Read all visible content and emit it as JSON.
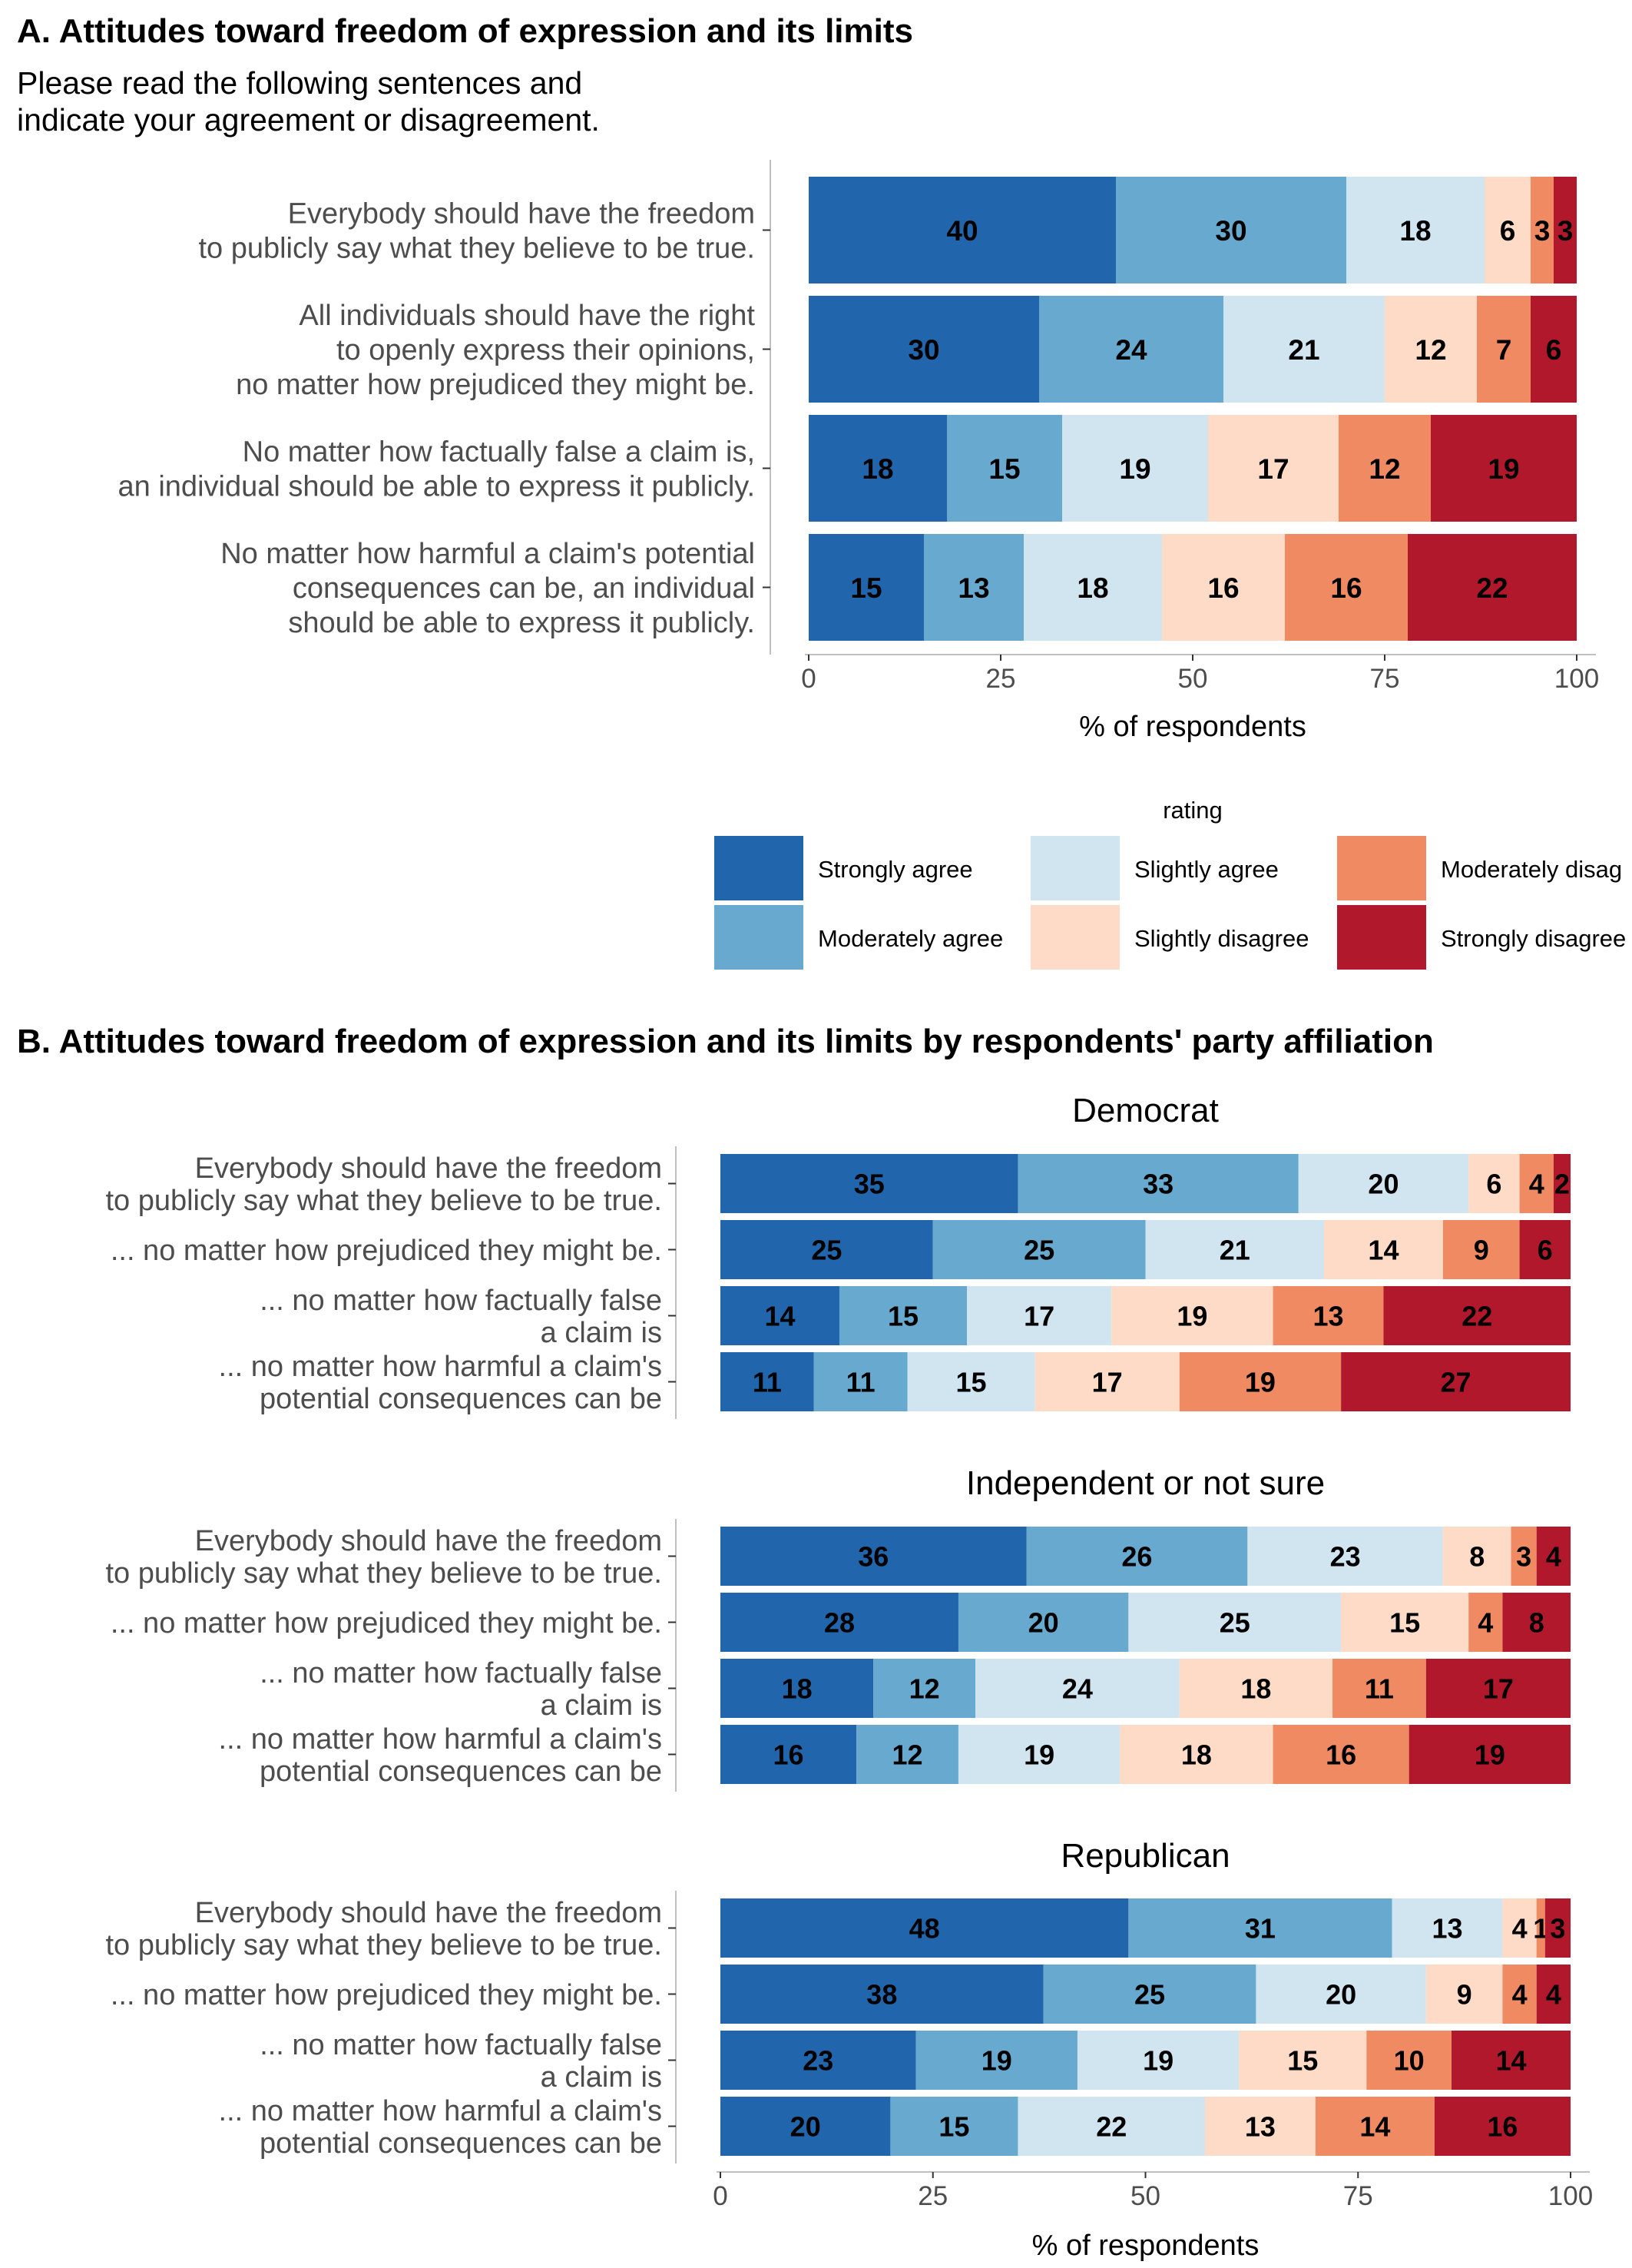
{
  "colors": {
    "Strongly agree": "#2166ac",
    "Moderately agree": "#67a9cf",
    "Slightly agree": "#d1e5f0",
    "Slightly disagree": "#fddbc7",
    "Moderately disagree": "#ef8a62",
    "Strongly disagree": "#b2182b"
  },
  "panel_a": {
    "title": "A. Attitudes toward freedom of expression and its limits",
    "subtitle": [
      "Please read the following sentences and",
      "indicate your agreement or disagreement."
    ]
  },
  "panel_b": {
    "title": "B. Attitudes toward freedom of expression and its limits by respondents' party affiliation"
  },
  "legend": {
    "title": "rating",
    "items": [
      "Strongly agree",
      "Moderately agree",
      "Slightly agree",
      "Slightly disagree",
      "Moderately disagree",
      "Strongly disagree"
    ],
    "visible_labels": [
      "Strongly agree",
      "Moderately agree",
      "Slightly agree",
      "Slightly disagree",
      "Moderately disag",
      "Strongly disagree"
    ]
  },
  "chart_data": [
    {
      "type": "bar",
      "orientation": "horizontal",
      "stacked": true,
      "title": "A. Attitudes toward freedom of expression and its limits",
      "subtitle": "Please read the following sentences and indicate your agreement or disagreement.",
      "xlabel": "% of respondents",
      "ylabel": "",
      "xlim": [
        0,
        100
      ],
      "xticks": [
        0,
        25,
        50,
        75,
        100
      ],
      "grid": false,
      "legend_position": "bottom",
      "categories": [
        [
          "Everybody should have the freedom",
          "to publicly say what they believe to be true."
        ],
        [
          "All individuals should have the right",
          "to openly express their opinions,",
          "no matter how prejudiced they might be."
        ],
        [
          "No matter how factually false a claim is,",
          "an individual should be able to express it publicly."
        ],
        [
          "No matter how harmful a claim's potential",
          "consequences can be, an individual",
          "should be able to express it publicly."
        ]
      ],
      "series": [
        {
          "name": "Strongly agree",
          "values": [
            40,
            30,
            18,
            15
          ]
        },
        {
          "name": "Moderately agree",
          "values": [
            30,
            24,
            15,
            13
          ]
        },
        {
          "name": "Slightly agree",
          "values": [
            18,
            21,
            19,
            18
          ]
        },
        {
          "name": "Slightly disagree",
          "values": [
            6,
            12,
            17,
            16
          ]
        },
        {
          "name": "Moderately disagree",
          "values": [
            3,
            7,
            12,
            16
          ]
        },
        {
          "name": "Strongly disagree",
          "values": [
            3,
            6,
            19,
            22
          ]
        }
      ]
    },
    {
      "type": "bar",
      "orientation": "horizontal",
      "stacked": true,
      "title": "B. Attitudes toward freedom of expression and its limits by respondents' party affiliation",
      "xlabel": "% of respondents",
      "ylabel": "",
      "xlim": [
        0,
        100
      ],
      "xticks": [
        0,
        25,
        50,
        75,
        100
      ],
      "grid": false,
      "categories": [
        [
          "Everybody should have the freedom",
          "to publicly say what they believe to be true."
        ],
        [
          "... no matter how prejudiced they might be."
        ],
        [
          "... no matter how factually false",
          "a claim is"
        ],
        [
          "... no matter how harmful a claim's",
          "potential consequences can be"
        ]
      ],
      "facets": [
        {
          "name": "Democrat",
          "series": [
            {
              "name": "Strongly agree",
              "values": [
                35,
                25,
                14,
                11
              ]
            },
            {
              "name": "Moderately agree",
              "values": [
                33,
                25,
                15,
                11
              ]
            },
            {
              "name": "Slightly agree",
              "values": [
                20,
                21,
                17,
                15
              ]
            },
            {
              "name": "Slightly disagree",
              "values": [
                6,
                14,
                19,
                17
              ]
            },
            {
              "name": "Moderately disagree",
              "values": [
                4,
                9,
                13,
                19
              ]
            },
            {
              "name": "Strongly disagree",
              "values": [
                2,
                6,
                22,
                27
              ]
            }
          ]
        },
        {
          "name": "Independent or not sure",
          "series": [
            {
              "name": "Strongly agree",
              "values": [
                36,
                28,
                18,
                16
              ]
            },
            {
              "name": "Moderately agree",
              "values": [
                26,
                20,
                12,
                12
              ]
            },
            {
              "name": "Slightly agree",
              "values": [
                23,
                25,
                24,
                19
              ]
            },
            {
              "name": "Slightly disagree",
              "values": [
                8,
                15,
                18,
                18
              ]
            },
            {
              "name": "Moderately disagree",
              "values": [
                3,
                4,
                11,
                16
              ]
            },
            {
              "name": "Strongly disagree",
              "values": [
                4,
                8,
                17,
                19
              ]
            }
          ]
        },
        {
          "name": "Republican",
          "series": [
            {
              "name": "Strongly agree",
              "values": [
                48,
                38,
                23,
                20
              ]
            },
            {
              "name": "Moderately agree",
              "values": [
                31,
                25,
                19,
                15
              ]
            },
            {
              "name": "Slightly agree",
              "values": [
                13,
                20,
                19,
                22
              ]
            },
            {
              "name": "Slightly disagree",
              "values": [
                4,
                9,
                15,
                13
              ]
            },
            {
              "name": "Moderately disagree",
              "values": [
                1,
                4,
                10,
                14
              ]
            },
            {
              "name": "Strongly disagree",
              "values": [
                3,
                4,
                14,
                16
              ]
            }
          ]
        }
      ]
    }
  ]
}
